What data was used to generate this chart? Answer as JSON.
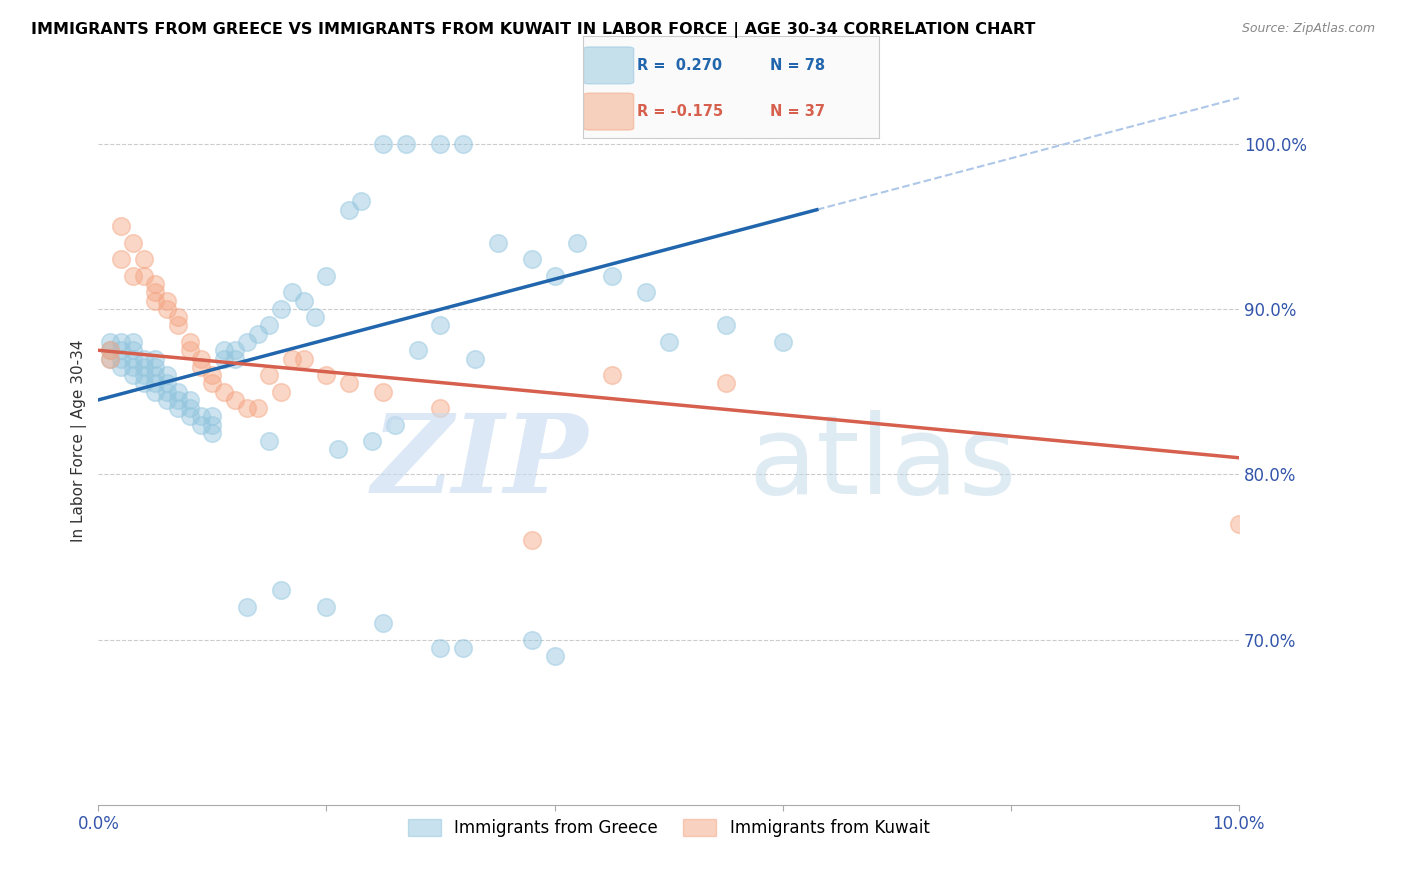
{
  "title": "IMMIGRANTS FROM GREECE VS IMMIGRANTS FROM KUWAIT IN LABOR FORCE | AGE 30-34 CORRELATION CHART",
  "source": "Source: ZipAtlas.com",
  "ylabel": "In Labor Force | Age 30-34",
  "xlim": [
    0.0,
    0.1
  ],
  "ylim": [
    0.6,
    1.04
  ],
  "yticks_right": [
    0.7,
    0.8,
    0.9,
    1.0
  ],
  "ytick_labels_right": [
    "70.0%",
    "80.0%",
    "90.0%",
    "100.0%"
  ],
  "blue_color": "#92c5de",
  "pink_color": "#f4a582",
  "trend_blue_color": "#2166ac",
  "trend_pink_color": "#d6604d",
  "trend_dashed_color": "#aec7e8",
  "blue_scatter_x": [
    0.001,
    0.001,
    0.001,
    0.002,
    0.002,
    0.002,
    0.002,
    0.003,
    0.003,
    0.003,
    0.003,
    0.003,
    0.004,
    0.004,
    0.004,
    0.004,
    0.005,
    0.005,
    0.005,
    0.005,
    0.005,
    0.006,
    0.006,
    0.006,
    0.006,
    0.007,
    0.007,
    0.007,
    0.008,
    0.008,
    0.008,
    0.009,
    0.009,
    0.01,
    0.01,
    0.01,
    0.011,
    0.011,
    0.012,
    0.012,
    0.013,
    0.014,
    0.015,
    0.016,
    0.017,
    0.018,
    0.019,
    0.02,
    0.022,
    0.023,
    0.025,
    0.027,
    0.03,
    0.032,
    0.035,
    0.038,
    0.04,
    0.042,
    0.045,
    0.048,
    0.05,
    0.055,
    0.06,
    0.03,
    0.033,
    0.028,
    0.026,
    0.024,
    0.021,
    0.015,
    0.013,
    0.016,
    0.02,
    0.025,
    0.03,
    0.032,
    0.038,
    0.04
  ],
  "blue_scatter_y": [
    0.87,
    0.875,
    0.88,
    0.865,
    0.87,
    0.875,
    0.88,
    0.86,
    0.865,
    0.87,
    0.875,
    0.88,
    0.855,
    0.86,
    0.865,
    0.87,
    0.85,
    0.855,
    0.86,
    0.865,
    0.87,
    0.845,
    0.85,
    0.855,
    0.86,
    0.84,
    0.845,
    0.85,
    0.835,
    0.84,
    0.845,
    0.83,
    0.835,
    0.825,
    0.83,
    0.835,
    0.87,
    0.875,
    0.87,
    0.875,
    0.88,
    0.885,
    0.89,
    0.9,
    0.91,
    0.905,
    0.895,
    0.92,
    0.96,
    0.965,
    1.0,
    1.0,
    1.0,
    1.0,
    0.94,
    0.93,
    0.92,
    0.94,
    0.92,
    0.91,
    0.88,
    0.89,
    0.88,
    0.89,
    0.87,
    0.875,
    0.83,
    0.82,
    0.815,
    0.82,
    0.72,
    0.73,
    0.72,
    0.71,
    0.695,
    0.695,
    0.7,
    0.69
  ],
  "pink_scatter_x": [
    0.001,
    0.001,
    0.002,
    0.002,
    0.003,
    0.003,
    0.004,
    0.004,
    0.005,
    0.005,
    0.005,
    0.006,
    0.006,
    0.007,
    0.007,
    0.008,
    0.008,
    0.009,
    0.009,
    0.01,
    0.01,
    0.011,
    0.012,
    0.013,
    0.014,
    0.015,
    0.016,
    0.017,
    0.018,
    0.02,
    0.022,
    0.025,
    0.03,
    0.038,
    0.045,
    0.055,
    0.1
  ],
  "pink_scatter_y": [
    0.87,
    0.875,
    0.95,
    0.93,
    0.92,
    0.94,
    0.93,
    0.92,
    0.915,
    0.905,
    0.91,
    0.905,
    0.9,
    0.895,
    0.89,
    0.88,
    0.875,
    0.87,
    0.865,
    0.86,
    0.855,
    0.85,
    0.845,
    0.84,
    0.84,
    0.86,
    0.85,
    0.87,
    0.87,
    0.86,
    0.855,
    0.85,
    0.84,
    0.76,
    0.86,
    0.855,
    0.77
  ],
  "trend_blue_x0": 0.0,
  "trend_blue_y0": 0.845,
  "trend_blue_x1": 0.063,
  "trend_blue_y1": 0.96,
  "trend_pink_x0": 0.0,
  "trend_pink_y0": 0.875,
  "trend_pink_x1": 0.1,
  "trend_pink_y1": 0.81
}
